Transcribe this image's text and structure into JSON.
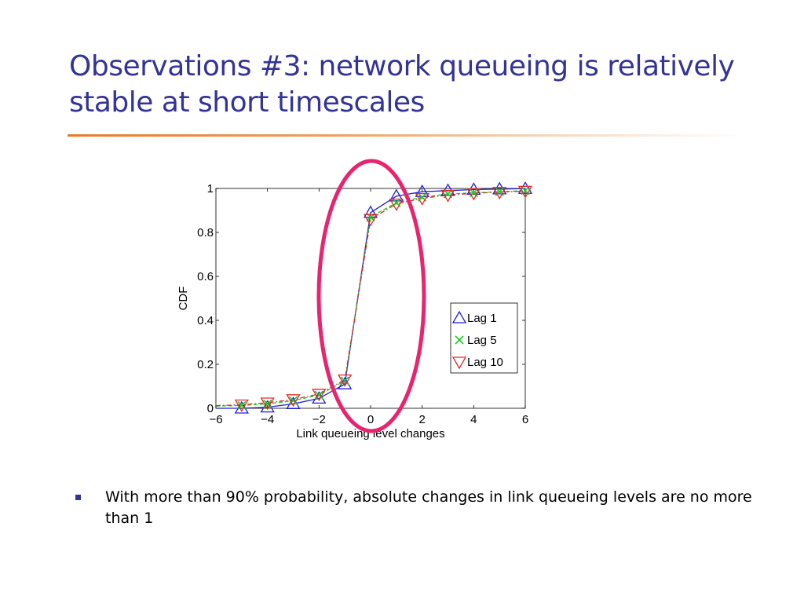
{
  "slide": {
    "title": "Observations #3: network queueing is relatively stable at short timescales",
    "bullets": [
      "With more than 90% probability, absolute changes in link queueing levels are no more than 1"
    ]
  },
  "colors": {
    "title": "#333399",
    "rule": "#e8792b",
    "bullet": "#333399",
    "highlight": "#e8246e",
    "lag1": "#1f1fd6",
    "lag5": "#1ecb1e",
    "lag10": "#e22a2a"
  },
  "chart_data": {
    "type": "line",
    "xlabel": "Link queueing level changes",
    "ylabel": "CDF",
    "xlim": [
      -6,
      6
    ],
    "ylim": [
      0,
      1
    ],
    "xticks": [
      -6,
      -4,
      -2,
      0,
      2,
      4,
      6
    ],
    "xtick_labels": [
      "−6",
      "−4",
      "−2",
      "0",
      "2",
      "4",
      "6"
    ],
    "yticks": [
      0,
      0.2,
      0.4,
      0.6,
      0.8,
      1
    ],
    "ytick_labels": [
      "0",
      "0.2",
      "0.4",
      "0.6",
      "0.8",
      "1"
    ],
    "x": [
      -6,
      -5,
      -4,
      -3,
      -2,
      -1,
      0,
      1,
      2,
      3,
      4,
      5,
      6
    ],
    "legend_position": "lower-right",
    "grid": false,
    "series": [
      {
        "name": "Lag 1",
        "marker": "triangle-up",
        "line": "solid",
        "values": [
          0.0,
          0.0,
          0.005,
          0.02,
          0.045,
          0.11,
          0.89,
          0.965,
          0.985,
          0.99,
          0.995,
          0.997,
          0.999
        ]
      },
      {
        "name": "Lag 5",
        "marker": "x",
        "line": "dashed",
        "values": [
          0.01,
          0.013,
          0.02,
          0.035,
          0.06,
          0.125,
          0.87,
          0.935,
          0.96,
          0.975,
          0.98,
          0.985,
          0.99
        ]
      },
      {
        "name": "Lag 10",
        "marker": "triangle-down",
        "line": "dashdot",
        "values": [
          0.012,
          0.016,
          0.025,
          0.04,
          0.065,
          0.13,
          0.86,
          0.93,
          0.955,
          0.97,
          0.978,
          0.983,
          0.988
        ]
      }
    ]
  }
}
